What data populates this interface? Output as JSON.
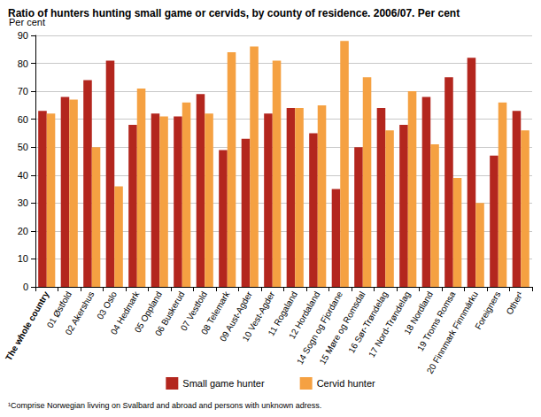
{
  "chart_data": {
    "type": "bar",
    "title": "Ratio of hunters hunting small game or cervids, by county of residence. 2006/07. Per cent",
    "ylabel": "Per cent",
    "footnote": "¹Comprise Norwegian livving on Svalbard and abroad and persons with unknown adress.",
    "categories": [
      "The whole country",
      "01 Østfold",
      "02 Akershus",
      "03 Oslo",
      "04 Hedmark",
      "05 Oppland",
      "06 Buskerud",
      "07 Vestfold",
      "08 Telemark",
      "09 Aust-Agder",
      "10 Vest-Agder",
      "11 Rogaland",
      "12 Hordaland",
      "14 Sogn og Fjordane",
      "15 Møre og Romsdal",
      "16 Sør-Trøndelag",
      "17 Nord-Trøndelag",
      "18 Nordland",
      "19 Troms Romsa",
      "20 Finnmark Finnmárku",
      "Foreigners",
      "Other¹"
    ],
    "series": [
      {
        "name": "Small game hunter",
        "color": "#b3261e",
        "values": [
          63,
          68,
          74,
          81,
          58,
          62,
          61,
          69,
          49,
          53,
          62,
          64,
          55,
          35,
          50,
          64,
          58,
          68,
          75,
          82,
          47,
          63
        ]
      },
      {
        "name": "Cervid hunter",
        "color": "#f5a142",
        "values": [
          62,
          67,
          50,
          36,
          71,
          61,
          66,
          62,
          84,
          86,
          81,
          64,
          65,
          88,
          75,
          56,
          70,
          51,
          39,
          30,
          66,
          56
        ]
      }
    ],
    "ylim": [
      0,
      90
    ],
    "yticks": [
      0,
      10,
      20,
      30,
      40,
      50,
      60,
      70,
      80,
      90
    ],
    "grid": true,
    "legend": "bottom"
  }
}
